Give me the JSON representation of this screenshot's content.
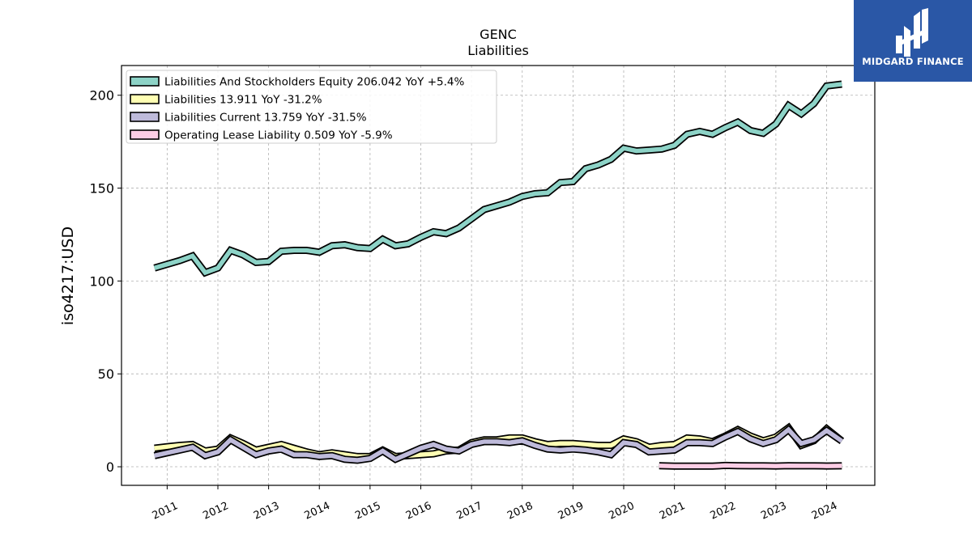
{
  "chart_data": {
    "type": "area",
    "title": "GENC",
    "subtitle": "Liabilities",
    "ylabel": "iso4217:USD",
    "ylim": [
      -10,
      216
    ],
    "xlim": [
      2010.1,
      2024.95
    ],
    "yticks": [
      0,
      50,
      100,
      150,
      200
    ],
    "xticks": [
      "2011",
      "2012",
      "2013",
      "2014",
      "2015",
      "2016",
      "2017",
      "2018",
      "2019",
      "2020",
      "2021",
      "2022",
      "2023",
      "2024"
    ],
    "grid": true,
    "legend_position": "top-left",
    "series": [
      {
        "name": "Liabilities And Stockholders Equity",
        "legend": "Liabilities And Stockholders Equity  206.042 YoY +5.4%",
        "color": "#8dd3c7",
        "x": [
          2010.75,
          2011.0,
          2011.25,
          2011.5,
          2011.75,
          2012.0,
          2012.25,
          2012.5,
          2012.75,
          2013.0,
          2013.25,
          2013.5,
          2013.75,
          2014.0,
          2014.25,
          2014.5,
          2014.75,
          2015.0,
          2015.25,
          2015.5,
          2015.75,
          2016.0,
          2016.25,
          2016.5,
          2016.75,
          2017.0,
          2017.25,
          2017.5,
          2017.75,
          2018.0,
          2018.25,
          2018.5,
          2018.75,
          2019.0,
          2019.25,
          2019.5,
          2019.75,
          2020.0,
          2020.25,
          2020.5,
          2020.75,
          2021.0,
          2021.25,
          2021.5,
          2021.75,
          2022.0,
          2022.25,
          2022.5,
          2022.75,
          2023.0,
          2023.25,
          2023.5,
          2023.75,
          2024.0,
          2024.3
        ],
        "values": [
          107,
          109,
          111,
          113.5,
          104.5,
          107,
          116.5,
          114,
          110,
          110.5,
          116,
          116.5,
          116.5,
          115.5,
          119,
          119.5,
          118,
          117.5,
          122.5,
          119,
          120,
          123.5,
          126.5,
          125.5,
          128.5,
          133.5,
          138.5,
          140.5,
          142.5,
          145.5,
          147,
          147.5,
          153,
          153.5,
          160.5,
          162.5,
          165.5,
          171.5,
          170,
          170.5,
          171,
          173,
          179,
          180.5,
          179,
          182.5,
          185.5,
          181,
          179.5,
          184.5,
          194.5,
          190,
          195.5,
          205,
          206
        ]
      },
      {
        "name": "Liabilities",
        "legend": "Liabilities  13.911 YoY -31.2%",
        "color": "#ffffb3",
        "x": [
          2010.75,
          2011.0,
          2011.25,
          2011.5,
          2011.75,
          2012.0,
          2012.25,
          2012.5,
          2012.75,
          2013.0,
          2013.25,
          2013.5,
          2013.75,
          2014.0,
          2014.25,
          2014.5,
          2014.75,
          2015.0,
          2015.25,
          2015.5,
          2015.75,
          2016.0,
          2016.25,
          2016.5,
          2016.75,
          2017.0,
          2017.25,
          2017.5,
          2017.75,
          2018.0,
          2018.25,
          2018.5,
          2018.75,
          2019.0,
          2019.25,
          2019.5,
          2019.75,
          2020.0,
          2020.25,
          2020.5,
          2020.75,
          2021.0,
          2021.25,
          2021.5,
          2021.75,
          2022.0,
          2022.25,
          2022.5,
          2022.75,
          2023.0,
          2023.25,
          2023.5,
          2023.75,
          2024.0,
          2024.3
        ],
        "values": [
          10,
          10.8,
          11.5,
          12,
          8.5,
          9.5,
          15.5,
          12.5,
          9,
          10.5,
          12,
          10,
          8,
          6.5,
          7.5,
          6.5,
          5.5,
          5.5,
          9,
          5.5,
          6,
          6.5,
          7,
          8.5,
          9,
          13,
          14.5,
          14.5,
          15.5,
          15.5,
          13.5,
          12,
          12.5,
          12.5,
          12,
          11.5,
          11.5,
          15,
          13.5,
          10.5,
          11.5,
          12,
          15.5,
          15,
          13.5,
          16.5,
          20,
          16.5,
          14,
          16,
          21,
          11.5,
          14,
          20.5,
          13.9
        ]
      },
      {
        "name": "Liabilities Current",
        "legend": "Liabilities Current  13.759 YoY -31.5%",
        "color": "#bebada",
        "x": [
          2010.75,
          2011.0,
          2011.25,
          2011.5,
          2011.75,
          2012.0,
          2012.25,
          2012.5,
          2012.75,
          2013.0,
          2013.25,
          2013.5,
          2013.75,
          2014.0,
          2014.25,
          2014.5,
          2014.75,
          2015.0,
          2015.25,
          2015.5,
          2015.75,
          2016.0,
          2016.25,
          2016.5,
          2016.75,
          2017.0,
          2017.25,
          2017.5,
          2017.75,
          2018.0,
          2018.25,
          2018.5,
          2018.75,
          2019.0,
          2019.25,
          2019.5,
          2019.75,
          2020.0,
          2020.25,
          2020.5,
          2020.75,
          2021.0,
          2021.25,
          2021.5,
          2021.75,
          2022.0,
          2022.25,
          2022.5,
          2022.75,
          2023.0,
          2023.25,
          2023.5,
          2023.75,
          2024.0,
          2024.3
        ],
        "values": [
          6,
          7.5,
          9,
          10.5,
          6,
          8,
          14.5,
          10.5,
          6.5,
          8.5,
          9.5,
          6.5,
          6.5,
          5.5,
          6,
          4,
          3.5,
          4.5,
          8.5,
          4,
          7,
          10,
          12,
          9.5,
          8.5,
          12,
          13.5,
          13.5,
          13,
          14,
          11.5,
          9.5,
          9,
          9.5,
          9,
          8,
          6.5,
          13,
          12,
          8,
          8.5,
          9,
          13,
          13,
          12.5,
          16,
          19,
          15,
          12.5,
          14.5,
          20,
          12.5,
          14.5,
          19.5,
          13.8
        ]
      },
      {
        "name": "Operating Lease Liability",
        "legend": "Operating Lease Liability  0.509 YoY -5.9%",
        "color": "#fccde5",
        "x": [
          2020.7,
          2021.0,
          2021.25,
          2021.5,
          2021.75,
          2022.0,
          2022.25,
          2022.5,
          2022.75,
          2023.0,
          2023.25,
          2023.5,
          2023.75,
          2024.0,
          2024.3
        ],
        "values": [
          0.6,
          0.3,
          0.3,
          0.3,
          0.3,
          0.7,
          0.6,
          0.5,
          0.5,
          0.4,
          0.6,
          0.5,
          0.5,
          0.4,
          0.5
        ]
      }
    ]
  },
  "logo": {
    "text": "MIDGARD FINANCE"
  }
}
